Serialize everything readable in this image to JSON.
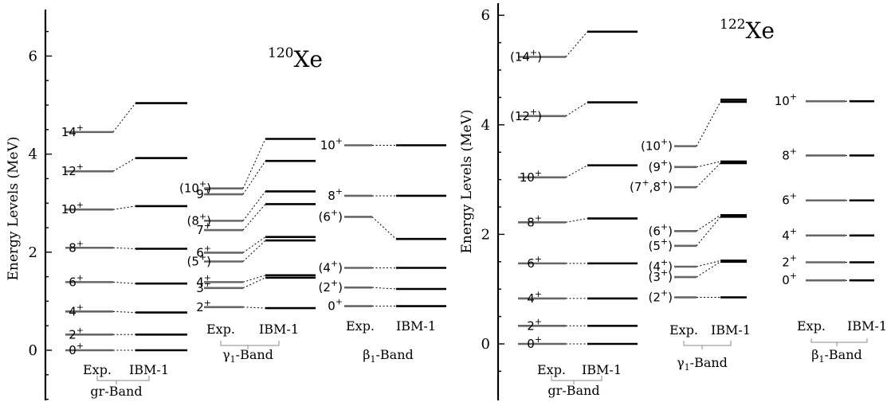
{
  "chart_data": [
    {
      "type": "level-scheme",
      "nucleus": {
        "mass": "120",
        "symbol": "Xe"
      },
      "ylabel": "Energy Levels (MeV)",
      "ylim": [
        -1.0,
        7.0
      ],
      "yticks": [
        0,
        2,
        4,
        6
      ],
      "bands": [
        {
          "name": "gr-Band",
          "col_exp": "Exp.",
          "col_th": "IBM-1",
          "bracket": true,
          "levels": [
            {
              "label": "0",
              "sup": "+",
              "exp": 0.0,
              "th": 0.0
            },
            {
              "label": "2",
              "sup": "+",
              "exp": 0.32,
              "th": 0.32
            },
            {
              "label": "4",
              "sup": "+",
              "exp": 0.79,
              "th": 0.77
            },
            {
              "label": "6",
              "sup": "+",
              "exp": 1.39,
              "th": 1.36
            },
            {
              "label": "8",
              "sup": "+",
              "exp": 2.09,
              "th": 2.07
            },
            {
              "label": "10",
              "sup": "+",
              "exp": 2.87,
              "th": 2.94
            },
            {
              "label": "12",
              "sup": "+",
              "exp": 3.65,
              "th": 3.92
            },
            {
              "label": "14",
              "sup": "+",
              "exp": 4.45,
              "th": 5.04
            }
          ]
        },
        {
          "name": "γ1-Band",
          "col_exp": "Exp.",
          "col_th": "IBM-1",
          "bracket": true,
          "levels": [
            {
              "label": "2",
              "sup": "+",
              "exp": 0.88,
              "th": 0.86
            },
            {
              "label": "3",
              "sup": "+",
              "exp": 1.27,
              "th": 1.48
            },
            {
              "label": "4",
              "sup": "+",
              "exp": 1.39,
              "th": 1.53
            },
            {
              "label": "(5",
              "sup": "+",
              "tail": ")",
              "exp": 1.81,
              "th": 2.24
            },
            {
              "label": "6",
              "sup": "+",
              "exp": 1.99,
              "th": 2.31
            },
            {
              "label": "7",
              "sup": "+",
              "exp": 2.45,
              "th": 2.98
            },
            {
              "label": "(8",
              "sup": "+",
              "tail": ")",
              "exp": 2.64,
              "th": 3.24
            },
            {
              "label": "9",
              "sup": "+",
              "exp": 3.18,
              "th": 3.86
            },
            {
              "label": "(10",
              "sup": "+",
              "tail": ")",
              "exp": 3.3,
              "th": 4.31
            }
          ]
        },
        {
          "name": "β1-Band",
          "col_exp": "Exp.",
          "col_th": "IBM-1",
          "bracket": false,
          "levels": [
            {
              "label": "0",
              "sup": "+",
              "exp": 0.9,
              "th": 0.9
            },
            {
              "label": "(2",
              "sup": "+",
              "tail": ")",
              "exp": 1.28,
              "th": 1.25
            },
            {
              "label": "(4",
              "sup": "+",
              "tail": ")",
              "exp": 1.68,
              "th": 1.68
            },
            {
              "label": "(6",
              "sup": "+",
              "tail": ")",
              "exp": 2.72,
              "th": 2.27
            },
            {
              "label": "8",
              "sup": "+",
              "exp": 3.15,
              "th": 3.15
            },
            {
              "label": "10",
              "sup": "+",
              "exp": 4.18,
              "th": 4.18
            }
          ]
        }
      ]
    },
    {
      "type": "level-scheme",
      "nucleus": {
        "mass": "122",
        "symbol": "Xe"
      },
      "ylabel": "Energy Levels (MeV)",
      "ylim": [
        -0.72,
        6.0
      ],
      "yticks": [
        0,
        2,
        4,
        6
      ],
      "bands": [
        {
          "name": "gr-Band",
          "col_exp": "Exp.",
          "col_th": "IBM-1",
          "bracket": true,
          "levels": [
            {
              "label": "0",
              "sup": "+",
              "exp": 0.0,
              "th": 0.0
            },
            {
              "label": "2",
              "sup": "+",
              "exp": 0.33,
              "th": 0.33
            },
            {
              "label": "4",
              "sup": "+",
              "exp": 0.83,
              "th": 0.83
            },
            {
              "label": "6",
              "sup": "+",
              "exp": 1.47,
              "th": 1.47
            },
            {
              "label": "8",
              "sup": "+",
              "exp": 2.22,
              "th": 2.29
            },
            {
              "label": "10",
              "sup": "+",
              "exp": 3.04,
              "th": 3.26
            },
            {
              "label": "(12",
              "sup": "+",
              "tail": ")",
              "exp": 4.16,
              "th": 4.41
            },
            {
              "label": "(14",
              "sup": "+",
              "tail": ")",
              "exp": 5.24,
              "th": 5.7
            }
          ]
        },
        {
          "name": "γ1-Band",
          "col_exp": "Exp.",
          "col_th": "IBM-1",
          "bracket": true,
          "levels": [
            {
              "label": "(2",
              "sup": "+",
              "tail": ")",
              "exp": 0.85,
              "th": 0.85
            },
            {
              "label": "(3",
              "sup": "+",
              "tail": ")",
              "exp": 1.22,
              "th": 1.5
            },
            {
              "label": "(4",
              "sup": "+",
              "tail": ")",
              "exp": 1.41,
              "th": 1.52
            },
            {
              "label": "(5",
              "sup": "+",
              "tail": ")",
              "exp": 1.79,
              "th": 2.32
            },
            {
              "label": "(6",
              "sup": "+",
              "tail": ")",
              "exp": 2.06,
              "th": 2.35
            },
            {
              "label": "(7",
              "sup": "+",
              "tail": ",8",
              "sup2": "+",
              "tail2": ")",
              "exp": 2.86,
              "th": 3.3
            },
            {
              "label": "(9",
              "sup": "+",
              "tail": ")",
              "exp": 3.23,
              "th": 3.33
            },
            {
              "label": "(10",
              "sup": "+",
              "tail": ")",
              "exp": 3.61,
              "th": 4.42
            },
            {
              "exp": null,
              "th": 4.46
            }
          ]
        },
        {
          "name": "β1-Band",
          "col_exp": "Exp.",
          "col_th": "IBM-1",
          "bracket": true,
          "levels": [
            {
              "label": "0",
              "sup": "+",
              "exp": 1.16,
              "th": 1.16
            },
            {
              "label": "2",
              "sup": "+",
              "exp": 1.49,
              "th": 1.49
            },
            {
              "label": "4",
              "sup": "+",
              "exp": 1.98,
              "th": 1.98
            },
            {
              "label": "6",
              "sup": "+",
              "exp": 2.62,
              "th": 2.62
            },
            {
              "label": "8",
              "sup": "+",
              "exp": 3.44,
              "th": 3.44
            },
            {
              "label": "10",
              "sup": "+",
              "exp": 4.43,
              "th": 4.43
            }
          ]
        }
      ]
    }
  ],
  "colors": {
    "exp_level": "#666666",
    "th_level": "#000000",
    "axis": "#000000",
    "connector": "#000000"
  }
}
